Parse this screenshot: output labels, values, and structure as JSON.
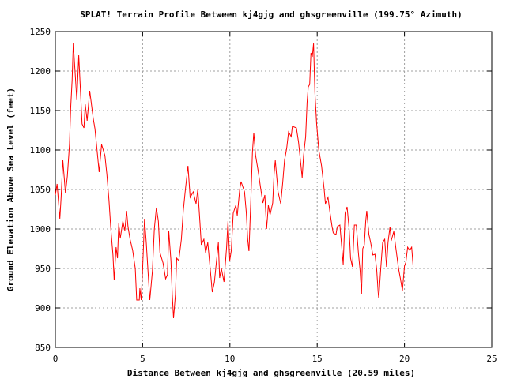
{
  "chart_data": {
    "type": "line",
    "title": "SPLAT! Terrain Profile Between kj4gjg and ghsgreenville (199.75° Azimuth)",
    "xlabel": "Distance Between kj4gjg and ghsgreenville (20.59 miles)",
    "ylabel": "Ground Elevation Above Sea Level (feet)",
    "xlim": [
      0,
      25
    ],
    "ylim": [
      850,
      1250
    ],
    "xticks": [
      0,
      5,
      10,
      15,
      20,
      25
    ],
    "yticks": [
      850,
      900,
      950,
      1000,
      1050,
      1100,
      1150,
      1200,
      1250
    ],
    "grid": true,
    "line_color": "#ff0000",
    "series": [
      {
        "name": "terrain",
        "x": [
          0,
          0.1,
          0.26,
          0.33,
          0.43,
          0.58,
          0.69,
          0.81,
          0.88,
          0.96,
          1.03,
          1.23,
          1.34,
          1.53,
          1.64,
          1.71,
          1.82,
          1.97,
          2.17,
          2.27,
          2.43,
          2.51,
          2.65,
          2.84,
          2.95,
          3.07,
          3.18,
          3.3,
          3.37,
          3.48,
          3.56,
          3.63,
          3.72,
          3.87,
          3.98,
          4.08,
          4.16,
          4.28,
          4.43,
          4.58,
          4.66,
          4.81,
          4.84,
          4.92,
          5.0,
          5.11,
          5.21,
          5.3,
          5.41,
          5.56,
          5.67,
          5.79,
          5.9,
          5.99,
          6.17,
          6.32,
          6.42,
          6.5,
          6.62,
          6.7,
          6.77,
          6.88,
          6.95,
          7.07,
          7.22,
          7.33,
          7.45,
          7.6,
          7.72,
          7.9,
          8.06,
          8.16,
          8.28,
          8.36,
          8.51,
          8.61,
          8.73,
          8.88,
          8.99,
          9.11,
          9.34,
          9.41,
          9.51,
          9.66,
          9.81,
          9.89,
          9.99,
          10.08,
          10.19,
          10.34,
          10.42,
          10.56,
          10.64,
          10.84,
          10.94,
          11.02,
          11.09,
          11.2,
          11.29,
          11.37,
          11.47,
          11.62,
          11.77,
          11.89,
          12.0,
          12.1,
          12.2,
          12.3,
          12.45,
          12.53,
          12.6,
          12.76,
          12.91,
          13.03,
          13.13,
          13.25,
          13.36,
          13.51,
          13.58,
          13.81,
          13.93,
          14.07,
          14.14,
          14.22,
          14.34,
          14.42,
          14.49,
          14.57,
          14.64,
          14.72,
          14.79,
          14.87,
          14.97,
          15.09,
          15.25,
          15.4,
          15.47,
          15.62,
          15.74,
          15.85,
          15.92,
          16.08,
          16.15,
          16.3,
          16.42,
          16.49,
          16.6,
          16.71,
          16.83,
          16.91,
          17.02,
          17.13,
          17.24,
          17.36,
          17.46,
          17.54,
          17.61,
          17.7,
          17.78,
          17.84,
          17.96,
          18.06,
          18.19,
          18.31,
          18.41,
          18.49,
          18.53,
          18.64,
          18.75,
          18.87,
          18.97,
          19.06,
          19.17,
          19.24,
          19.39,
          19.51,
          19.66,
          19.77,
          19.88,
          20.0,
          20.08,
          20.18,
          20.3,
          20.41,
          20.5
        ],
        "y": [
          1043,
          1057,
          1013,
          1040,
          1087,
          1045,
          1067,
          1107,
          1153,
          1188,
          1235,
          1163,
          1220,
          1133,
          1128,
          1158,
          1137,
          1175,
          1140,
          1127,
          1090,
          1072,
          1107,
          1093,
          1070,
          1037,
          1000,
          967,
          935,
          977,
          963,
          1007,
          988,
          1010,
          998,
          1023,
          1003,
          987,
          973,
          950,
          910,
          910,
          925,
          910,
          950,
          1013,
          983,
          950,
          910,
          947,
          1000,
          1027,
          1010,
          970,
          957,
          937,
          942,
          997,
          960,
          917,
          887,
          917,
          963,
          960,
          987,
          1023,
          1050,
          1080,
          1040,
          1047,
          1032,
          1050,
          1010,
          980,
          987,
          970,
          983,
          947,
          920,
          932,
          983,
          938,
          950,
          933,
          977,
          1010,
          960,
          973,
          1020,
          1030,
          1017,
          1050,
          1060,
          1047,
          1020,
          987,
          972,
          1037,
          1097,
          1122,
          1093,
          1073,
          1050,
          1033,
          1043,
          1000,
          1030,
          1018,
          1033,
          1070,
          1087,
          1047,
          1032,
          1060,
          1087,
          1102,
          1123,
          1117,
          1130,
          1128,
          1110,
          1080,
          1065,
          1093,
          1117,
          1160,
          1180,
          1183,
          1223,
          1218,
          1235,
          1173,
          1133,
          1100,
          1080,
          1050,
          1032,
          1040,
          1020,
          1003,
          995,
          993,
          1003,
          1005,
          973,
          955,
          1020,
          1028,
          1000,
          963,
          952,
          1005,
          1005,
          970,
          947,
          918,
          975,
          980,
          1010,
          1023,
          993,
          983,
          967,
          968,
          948,
          920,
          912,
          950,
          983,
          987,
          952,
          983,
          1003,
          985,
          997,
          975,
          950,
          937,
          922,
          953,
          958,
          977,
          973,
          977,
          952
        ]
      }
    ]
  }
}
